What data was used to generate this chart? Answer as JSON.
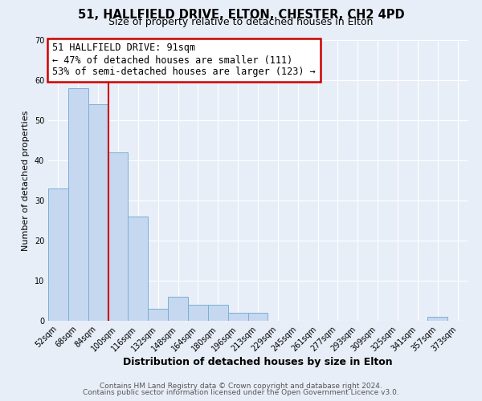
{
  "title": "51, HALLFIELD DRIVE, ELTON, CHESTER, CH2 4PD",
  "subtitle": "Size of property relative to detached houses in Elton",
  "xlabel": "Distribution of detached houses by size in Elton",
  "ylabel": "Number of detached properties",
  "bar_labels": [
    "52sqm",
    "68sqm",
    "84sqm",
    "100sqm",
    "116sqm",
    "132sqm",
    "148sqm",
    "164sqm",
    "180sqm",
    "196sqm",
    "213sqm",
    "229sqm",
    "245sqm",
    "261sqm",
    "277sqm",
    "293sqm",
    "309sqm",
    "325sqm",
    "341sqm",
    "357sqm",
    "373sqm"
  ],
  "bar_values": [
    33,
    58,
    54,
    42,
    26,
    3,
    6,
    4,
    4,
    2,
    2,
    0,
    0,
    0,
    0,
    0,
    0,
    0,
    0,
    1,
    0
  ],
  "bar_color": "#c5d8f0",
  "bar_edgecolor": "#7aafd4",
  "vline_color": "#cc0000",
  "annotation_title": "51 HALLFIELD DRIVE: 91sqm",
  "annotation_line1": "← 47% of detached houses are smaller (111)",
  "annotation_line2": "53% of semi-detached houses are larger (123) →",
  "annotation_box_facecolor": "#ffffff",
  "annotation_box_edgecolor": "#cc0000",
  "ylim": [
    0,
    70
  ],
  "yticks": [
    0,
    10,
    20,
    30,
    40,
    50,
    60,
    70
  ],
  "footnote1": "Contains HM Land Registry data © Crown copyright and database right 2024.",
  "footnote2": "Contains public sector information licensed under the Open Government Licence v3.0.",
  "bg_color": "#e8eef8",
  "plot_bg_color": "#e8eef8",
  "grid_color": "#ffffff",
  "title_fontsize": 10.5,
  "subtitle_fontsize": 9,
  "xlabel_fontsize": 9,
  "ylabel_fontsize": 8,
  "footnote_fontsize": 6.5,
  "tick_fontsize": 7,
  "annotation_fontsize": 8.5
}
